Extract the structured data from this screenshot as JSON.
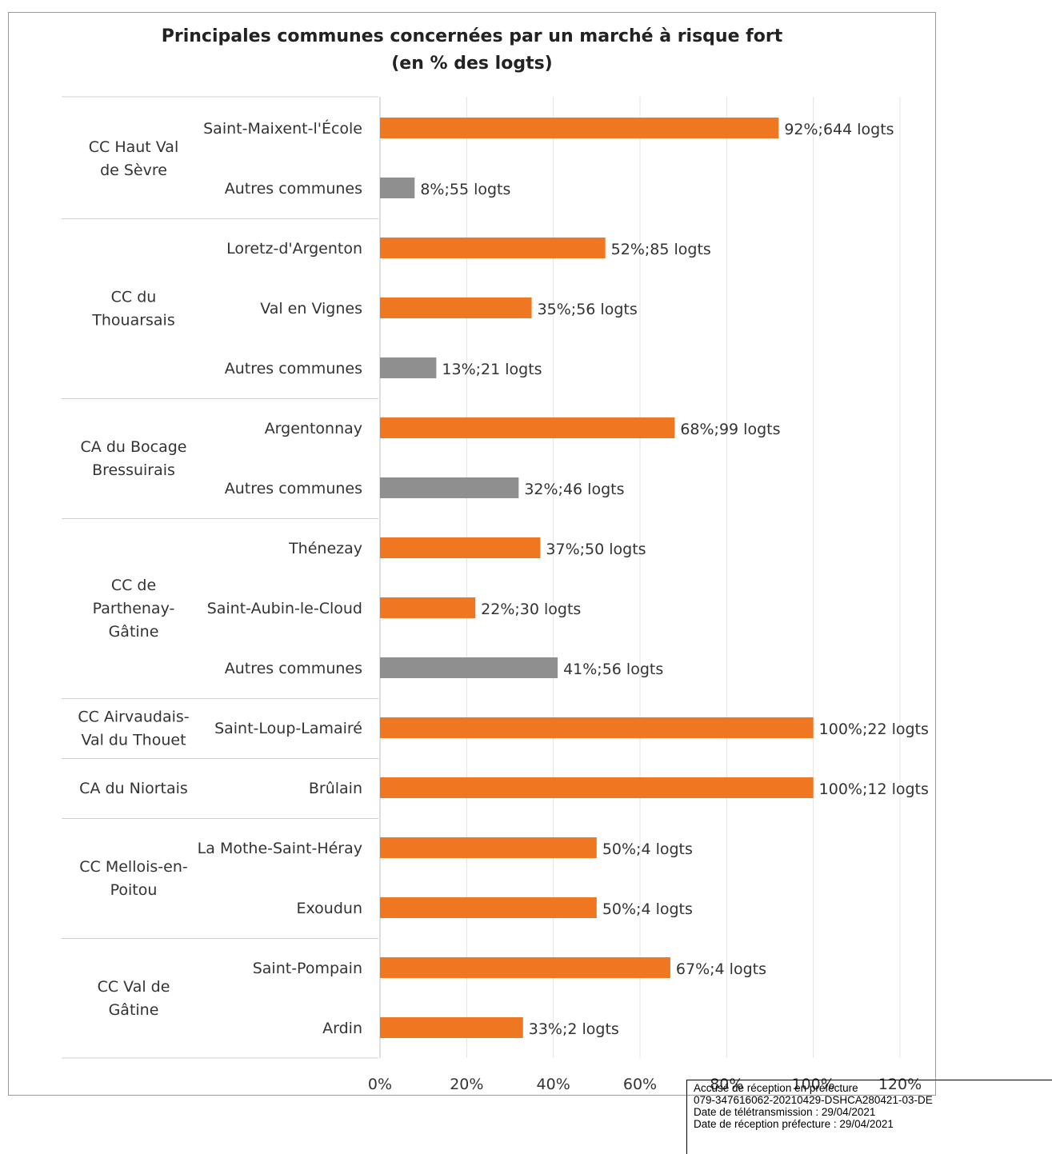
{
  "chart_data": {
    "type": "bar",
    "orientation": "horizontal",
    "title": [
      "Principales communes concernées par un marché à risque fort",
      "(en % des logts)"
    ],
    "xlim": [
      0,
      120
    ],
    "x_ticks": [
      "0%",
      "20%",
      "40%",
      "60%",
      "80%",
      "100%",
      "120%"
    ],
    "grid": "vertical",
    "groups": [
      {
        "name": [
          "CC Haut Val",
          "de Sèvre"
        ],
        "rows": [
          {
            "label": "Saint-Maixent-l'École",
            "value": 92,
            "data_label": "92%;644 logts",
            "color": "#f07722"
          },
          {
            "label": "Autres communes",
            "value": 8,
            "data_label": "8%;55 logts",
            "color": "#8f8f8f"
          }
        ]
      },
      {
        "name": [
          "CC du",
          "Thouarsais"
        ],
        "rows": [
          {
            "label": "Loretz-d'Argenton",
            "value": 52,
            "data_label": "52%;85 logts",
            "color": "#f07722"
          },
          {
            "label": "Val en Vignes",
            "value": 35,
            "data_label": "35%;56 logts",
            "color": "#f07722"
          },
          {
            "label": "Autres communes",
            "value": 13,
            "data_label": "13%;21 logts",
            "color": "#8f8f8f"
          }
        ]
      },
      {
        "name": [
          "CA du Bocage",
          "Bressuirais"
        ],
        "rows": [
          {
            "label": "Argentonnay",
            "value": 68,
            "data_label": "68%;99 logts",
            "color": "#f07722"
          },
          {
            "label": "Autres communes",
            "value": 32,
            "data_label": "32%;46 logts",
            "color": "#8f8f8f"
          }
        ]
      },
      {
        "name": [
          "CC de",
          "Parthenay-",
          "Gâtine"
        ],
        "rows": [
          {
            "label": "Thénezay",
            "value": 37,
            "data_label": "37%;50 logts",
            "color": "#f07722"
          },
          {
            "label": "Saint-Aubin-le-Cloud",
            "value": 22,
            "data_label": "22%;30 logts",
            "color": "#f07722"
          },
          {
            "label": "Autres communes",
            "value": 41,
            "data_label": "41%;56 logts",
            "color": "#8f8f8f"
          }
        ]
      },
      {
        "name": [
          "CC Airvaudais-",
          "Val du Thouet"
        ],
        "rows": [
          {
            "label": "Saint-Loup-Lamairé",
            "value": 100,
            "data_label": "100%;22 logts",
            "color": "#f07722"
          }
        ]
      },
      {
        "name": [
          "CA du Niortais"
        ],
        "rows": [
          {
            "label": "Brûlain",
            "value": 100,
            "data_label": "100%;12 logts",
            "color": "#f07722"
          }
        ]
      },
      {
        "name": [
          "CC Mellois-en-",
          "Poitou"
        ],
        "rows": [
          {
            "label": "La Mothe-Saint-Héray",
            "value": 50,
            "data_label": "50%;4 logts",
            "color": "#f07722"
          },
          {
            "label": "Exoudun",
            "value": 50,
            "data_label": "50%;4 logts",
            "color": "#f07722"
          }
        ]
      },
      {
        "name": [
          "CC Val de",
          "Gâtine"
        ],
        "rows": [
          {
            "label": "Saint-Pompain",
            "value": 67,
            "data_label": "67%;4 logts",
            "color": "#f07722"
          },
          {
            "label": "Ardin",
            "value": 33,
            "data_label": "33%;2 logts",
            "color": "#f07722"
          }
        ]
      }
    ]
  },
  "stamp": {
    "line1": "Accusé de réception en préfecture",
    "line2": "079-347616062-20210429-DSHCA280421-03-DE",
    "line3": "Date de télétransmission : 29/04/2021",
    "line4": "Date de réception préfecture : 29/04/2021"
  }
}
